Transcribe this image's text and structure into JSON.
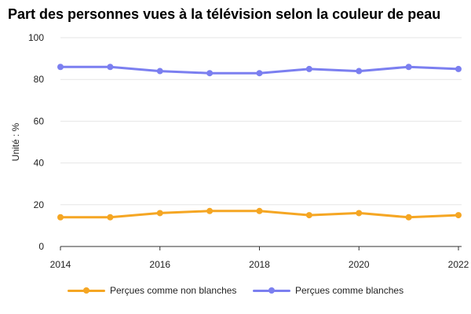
{
  "chart_data": {
    "type": "line",
    "title": "Part des personnes vues à la télévision selon la couleur de peau",
    "ylabel": "Unité : %",
    "xlabel": "",
    "x": [
      2014,
      2015,
      2016,
      2017,
      2018,
      2019,
      2020,
      2021,
      2022
    ],
    "xticks": [
      "2014",
      "2016",
      "2018",
      "2020",
      "2022"
    ],
    "yticks": [
      "0",
      "20",
      "40",
      "60",
      "80",
      "100"
    ],
    "ylim": [
      0,
      100
    ],
    "xlim": [
      2014,
      2022
    ],
    "grid": "horizontal",
    "legend_position": "bottom",
    "series": [
      {
        "name": "Perçues comme non blanches",
        "color": "#f5a623",
        "values": [
          14,
          14,
          16,
          17,
          17,
          15,
          16,
          14,
          15
        ]
      },
      {
        "name": "Perçues comme blanches",
        "color": "#7b7ff0",
        "values": [
          86,
          86,
          84,
          83,
          83,
          85,
          84,
          86,
          85
        ]
      }
    ]
  }
}
